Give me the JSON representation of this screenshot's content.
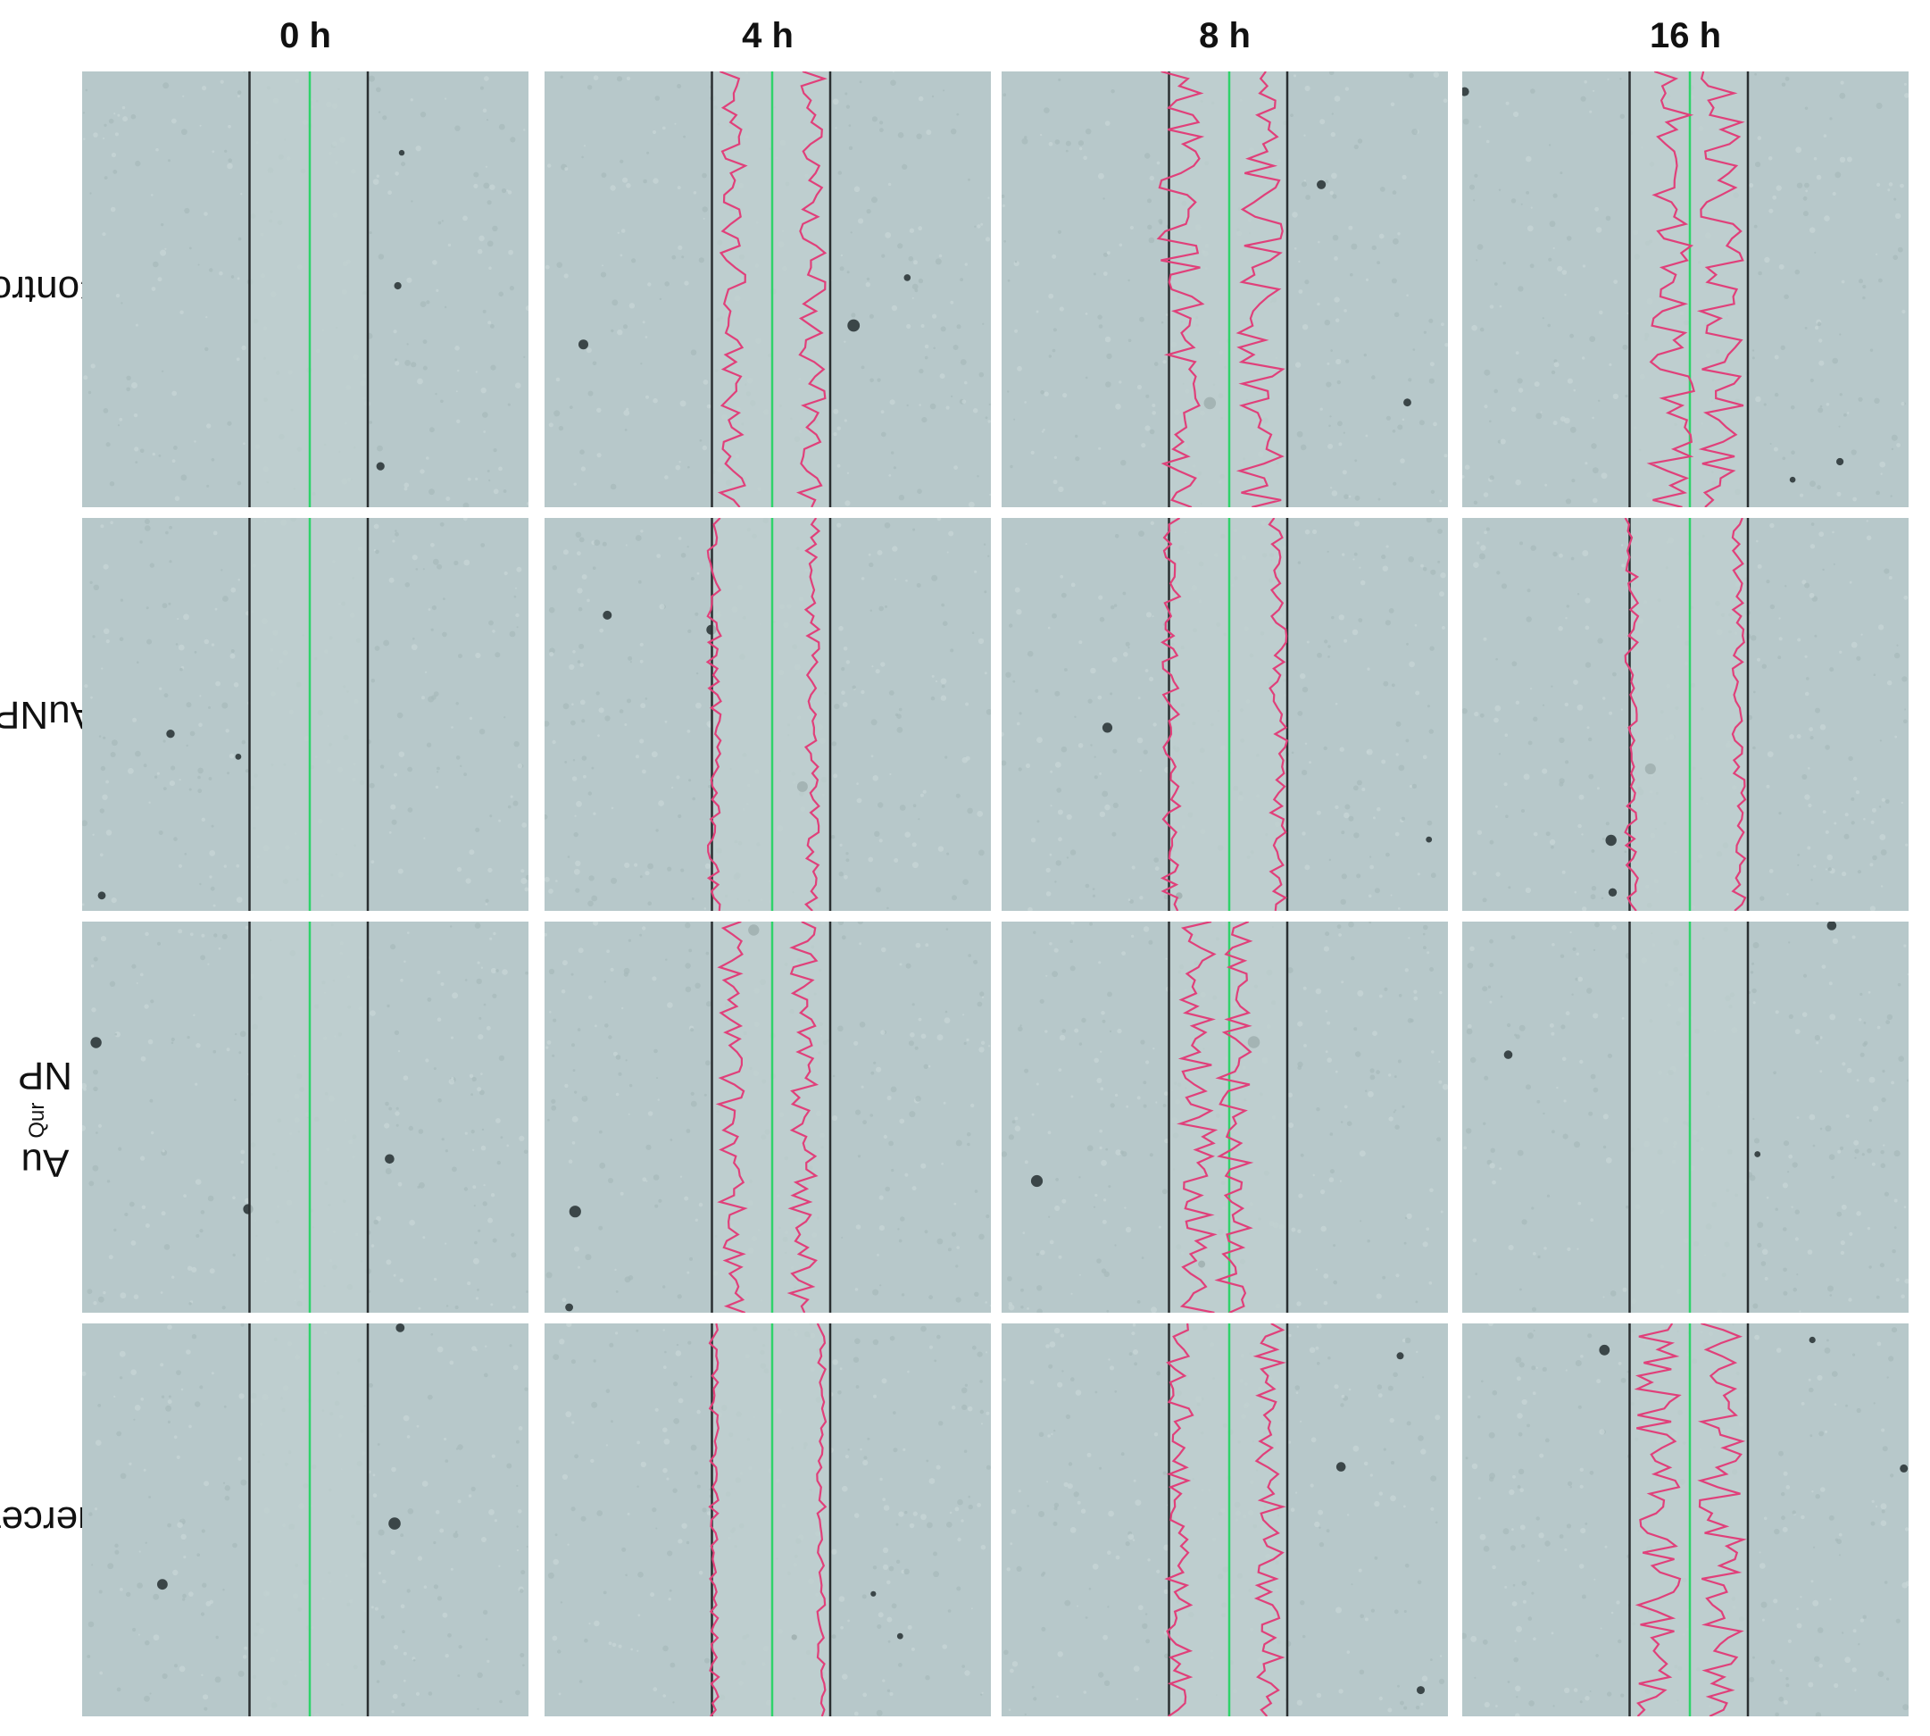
{
  "columns": [
    "0 h",
    "4 h",
    "8 h",
    "16 h"
  ],
  "rows": [
    {
      "label_main": "Control",
      "label_sup": "",
      "label_tail": ""
    },
    {
      "label_main": "AuNP",
      "label_sup": "",
      "label_tail": ""
    },
    {
      "label_main": "Au",
      "label_sup": "Qur",
      "label_tail": "NP"
    },
    {
      "label_main": "Quercetin",
      "label_sup": "",
      "label_tail": ""
    }
  ],
  "colors": {
    "background": "#b7c8ca",
    "wound_edge": "#2a2f31",
    "center_line": "#2fd36a",
    "cell_front": "#e0407a"
  },
  "panels": [
    [
      {
        "front": "none"
      },
      {
        "front": "two",
        "left": 0.42,
        "right": 0.6,
        "amp": 0.03
      },
      {
        "front": "two",
        "left": 0.4,
        "right": 0.58,
        "amp": 0.05
      },
      {
        "front": "merged",
        "left": 0.47,
        "right": 0.58,
        "amp": 0.05
      }
    ],
    [
      {
        "front": "none"
      },
      {
        "front": "two",
        "left": 0.38,
        "right": 0.6,
        "amp": 0.015
      },
      {
        "front": "two",
        "left": 0.38,
        "right": 0.62,
        "amp": 0.02
      },
      {
        "front": "two",
        "left": 0.38,
        "right": 0.62,
        "amp": 0.015
      }
    ],
    [
      {
        "front": "none"
      },
      {
        "front": "two",
        "left": 0.42,
        "right": 0.58,
        "amp": 0.03
      },
      {
        "front": "merged",
        "left": 0.44,
        "right": 0.52,
        "amp": 0.04
      },
      {
        "front": "none"
      }
    ],
    [
      {
        "front": "none"
      },
      {
        "front": "two",
        "left": 0.38,
        "right": 0.62,
        "amp": 0.01
      },
      {
        "front": "two",
        "left": 0.4,
        "right": 0.6,
        "amp": 0.03
      },
      {
        "front": "merged",
        "left": 0.44,
        "right": 0.58,
        "amp": 0.05
      }
    ]
  ]
}
